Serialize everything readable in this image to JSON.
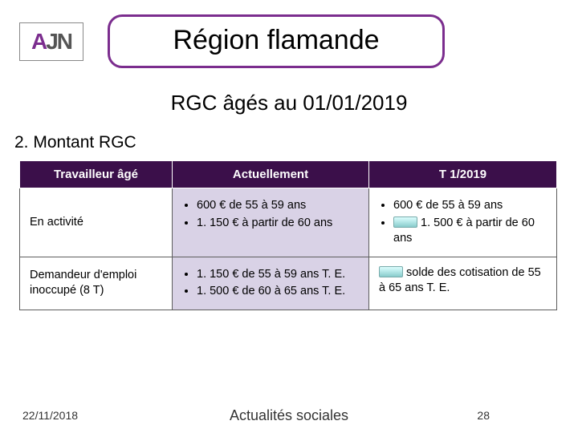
{
  "colors": {
    "accent": "#7b2d8e",
    "header_bg": "#3b0f4a",
    "row_border": "#5d5d5d",
    "cell_shade": "#d9d2e6"
  },
  "logo": {
    "a": "A",
    "j": "J",
    "n": "N"
  },
  "title": "Région flamande",
  "subtitle": "RGC âgés au 01/01/2019",
  "section_heading": "2. Montant RGC",
  "table": {
    "headers": {
      "c1": "Travailleur âgé",
      "c2": "Actuellement",
      "c3": "T 1/2019"
    },
    "r1": {
      "label": "En activité",
      "c2_a": "600 € de 55 à 59 ans",
      "c2_b": "1. 150 € à partir de 60 ans",
      "c3_a": "600 € de 55 à 59 ans",
      "c3_b_suffix": " 1. 500 € à partir de 60 ans"
    },
    "r2": {
      "label": "Demandeur d'emploi inoccupé (8 T)",
      "c2_a": "1. 150 € de 55 à 59 ans T. E.",
      "c2_b": "1. 500 € de 60 à 65 ans T. E.",
      "c3_text": " solde des cotisation de 55 à 65 ans T. E."
    }
  },
  "footer": {
    "date": "22/11/2018",
    "center": "Actualités sociales",
    "page": "28"
  }
}
